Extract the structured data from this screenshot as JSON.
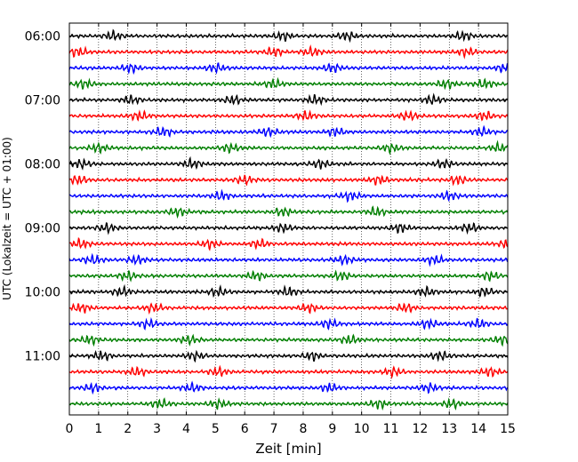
{
  "chart_data": {
    "type": "line",
    "title": "",
    "xlabel": "Zeit  [min]",
    "ylabel": "UTC (Lokalzeit = UTC + 01:00)",
    "xlim": [
      0,
      15
    ],
    "x_ticks": [
      0,
      1,
      2,
      3,
      4,
      5,
      6,
      7,
      8,
      9,
      10,
      11,
      12,
      13,
      14,
      15
    ],
    "y_tick_labels": [
      "06:00",
      "07:00",
      "08:00",
      "09:00",
      "10:00",
      "11:00"
    ],
    "trace_interval_minutes": 15,
    "first_trace_time": "06:00",
    "trace_count": 24,
    "trace_colors": [
      "#000000",
      "#ff0000",
      "#0000ff",
      "#007f00"
    ],
    "grid": "vertical dotted at each minute",
    "series": [
      {
        "start": "06:00",
        "color": "#000000",
        "bursts_min": [
          1.5,
          7.3,
          9.5,
          13.5
        ]
      },
      {
        "start": "06:15",
        "color": "#ff0000",
        "bursts_min": [
          0.3,
          7.0,
          8.3,
          13.6
        ]
      },
      {
        "start": "06:30",
        "color": "#0000ff",
        "bursts_min": [
          2.1,
          5.0,
          9.0,
          14.9
        ]
      },
      {
        "start": "06:45",
        "color": "#007f00",
        "bursts_min": [
          0.5,
          7.0,
          12.9,
          14.2
        ]
      },
      {
        "start": "07:00",
        "color": "#000000",
        "bursts_min": [
          2.1,
          5.6,
          8.4,
          12.4
        ]
      },
      {
        "start": "07:15",
        "color": "#ff0000",
        "bursts_min": [
          2.4,
          8.1,
          11.6,
          14.2
        ]
      },
      {
        "start": "07:30",
        "color": "#0000ff",
        "bursts_min": [
          3.2,
          6.8,
          9.1,
          14.1
        ]
      },
      {
        "start": "07:45",
        "color": "#007f00",
        "bursts_min": [
          1.0,
          5.5,
          11.0,
          14.7
        ]
      },
      {
        "start": "08:00",
        "color": "#000000",
        "bursts_min": [
          0.4,
          4.2,
          8.6,
          12.8
        ]
      },
      {
        "start": "08:15",
        "color": "#ff0000",
        "bursts_min": [
          0.3,
          6.0,
          10.6,
          13.3
        ]
      },
      {
        "start": "08:30",
        "color": "#0000ff",
        "bursts_min": [
          5.2,
          9.6,
          13.0
        ]
      },
      {
        "start": "08:45",
        "color": "#007f00",
        "bursts_min": [
          3.7,
          7.3,
          10.5
        ]
      },
      {
        "start": "09:00",
        "color": "#000000",
        "bursts_min": [
          1.3,
          7.3,
          11.3,
          13.7
        ]
      },
      {
        "start": "09:15",
        "color": "#ff0000",
        "bursts_min": [
          0.4,
          4.8,
          6.5,
          15.0
        ]
      },
      {
        "start": "09:30",
        "color": "#0000ff",
        "bursts_min": [
          0.8,
          2.3,
          9.4,
          12.5
        ]
      },
      {
        "start": "09:45",
        "color": "#007f00",
        "bursts_min": [
          2.0,
          6.4,
          9.3,
          14.4
        ]
      },
      {
        "start": "10:00",
        "color": "#000000",
        "bursts_min": [
          1.8,
          5.1,
          7.5,
          12.2,
          14.2
        ]
      },
      {
        "start": "10:15",
        "color": "#ff0000",
        "bursts_min": [
          0.4,
          2.9,
          8.2,
          11.5
        ]
      },
      {
        "start": "10:30",
        "color": "#0000ff",
        "bursts_min": [
          2.7,
          8.9,
          12.3,
          14.0
        ]
      },
      {
        "start": "10:45",
        "color": "#007f00",
        "bursts_min": [
          0.7,
          4.1,
          9.6,
          14.8
        ]
      },
      {
        "start": "11:00",
        "color": "#000000",
        "bursts_min": [
          1.1,
          4.3,
          8.3,
          12.7
        ]
      },
      {
        "start": "11:15",
        "color": "#ff0000",
        "bursts_min": [
          2.3,
          5.1,
          11.1,
          14.4
        ]
      },
      {
        "start": "11:30",
        "color": "#0000ff",
        "bursts_min": [
          0.8,
          4.2,
          8.9,
          12.3
        ]
      },
      {
        "start": "11:45",
        "color": "#007f00",
        "bursts_min": [
          3.1,
          5.1,
          10.6,
          13.1
        ]
      }
    ]
  }
}
